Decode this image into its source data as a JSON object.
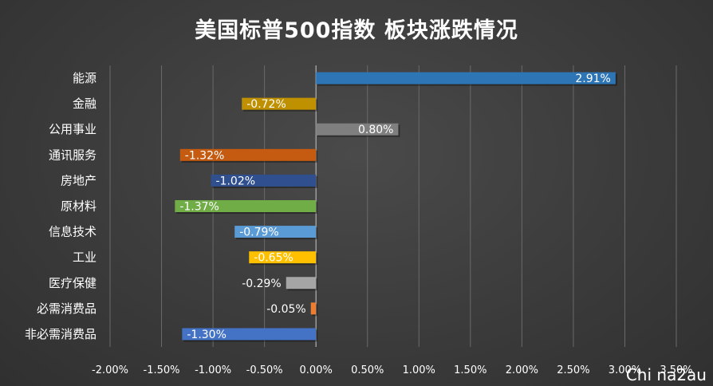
{
  "chart_data": {
    "type": "bar",
    "orientation": "horizontal",
    "title": "美国标普500指数 板块涨跌情况",
    "xlabel": "",
    "ylabel": "",
    "xlim": [
      -0.02,
      0.035
    ],
    "x_ticks": [
      -0.02,
      -0.015,
      -0.01,
      -0.005,
      0,
      0.005,
      0.01,
      0.015,
      0.02,
      0.025,
      0.03,
      0.035
    ],
    "x_tick_labels": [
      "-2.00%",
      "-1.50%",
      "-1.00%",
      "-0.50%",
      "0.00%",
      "0.50%",
      "1.00%",
      "1.50%",
      "2.00%",
      "2.50%",
      "3.00%",
      "3.50%"
    ],
    "grid": true,
    "categories": [
      "能源",
      "金融",
      "公用事业",
      "通讯服务",
      "房地产",
      "原材料",
      "信息技术",
      "工业",
      "医疗保健",
      "必需消费品",
      "非必需消费品"
    ],
    "values": [
      0.0291,
      -0.0072,
      0.008,
      -0.0132,
      -0.0102,
      -0.0137,
      -0.0079,
      -0.0065,
      -0.0029,
      -0.0005,
      -0.013
    ],
    "data_labels": [
      "2.91%",
      "-0.72%",
      "0.80%",
      "-1.32%",
      "-1.02%",
      "-1.37%",
      "-0.79%",
      "-0.65%",
      "-0.29%",
      "-0.05%",
      "-1.30%"
    ],
    "colors": [
      "#2e75b6",
      "#bf9000",
      "#7f7f7f",
      "#c55a11",
      "#2f4f8f",
      "#70ad47",
      "#5b9bd5",
      "#ffc000",
      "#a5a5a5",
      "#ed7d31",
      "#4472c4"
    ]
  },
  "watermark": "Chi na2au"
}
